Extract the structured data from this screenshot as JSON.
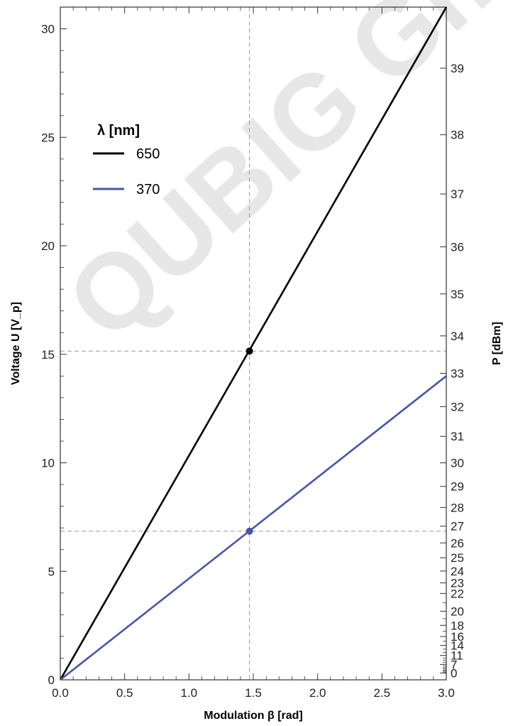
{
  "watermark": "QUBIG GmbH",
  "chart_data": {
    "type": "line",
    "xlabel": "Modulation β [rad]",
    "ylabel": "Voltage U [V_p]",
    "y2label": "P [dBm]",
    "xlim": [
      0,
      3.0
    ],
    "ylim": [
      0,
      31
    ],
    "y2lim_dbm": [
      0,
      40
    ],
    "x_ticks": [
      "0.0",
      "0.5",
      "1.0",
      "1.5",
      "2.0",
      "2.5",
      "3.0"
    ],
    "y_ticks": [
      "0",
      "5",
      "10",
      "15",
      "20",
      "25",
      "30"
    ],
    "y2_ticks": [
      0,
      7,
      11,
      14,
      16,
      18,
      20,
      22,
      23,
      24,
      25,
      26,
      27,
      28,
      29,
      30,
      31,
      32,
      33,
      34,
      35,
      36,
      37,
      38,
      39
    ],
    "legend_title": "λ [nm]",
    "legend_position": "top-left",
    "grid": false,
    "series": [
      {
        "name": "650",
        "color": "#000000",
        "x": [
          0,
          3.0
        ],
        "y": [
          0,
          31.0
        ]
      },
      {
        "name": "370",
        "color": "#4a55a2",
        "x": [
          0,
          3.0
        ],
        "y": [
          0,
          14.0
        ]
      }
    ],
    "markers": [
      {
        "series": "650",
        "x": 1.47,
        "y": 15.15
      },
      {
        "series": "370",
        "x": 1.47,
        "y": 6.85
      }
    ],
    "reference_lines": {
      "x": 1.47,
      "y": [
        15.15,
        6.85
      ],
      "color": "#999999"
    }
  }
}
